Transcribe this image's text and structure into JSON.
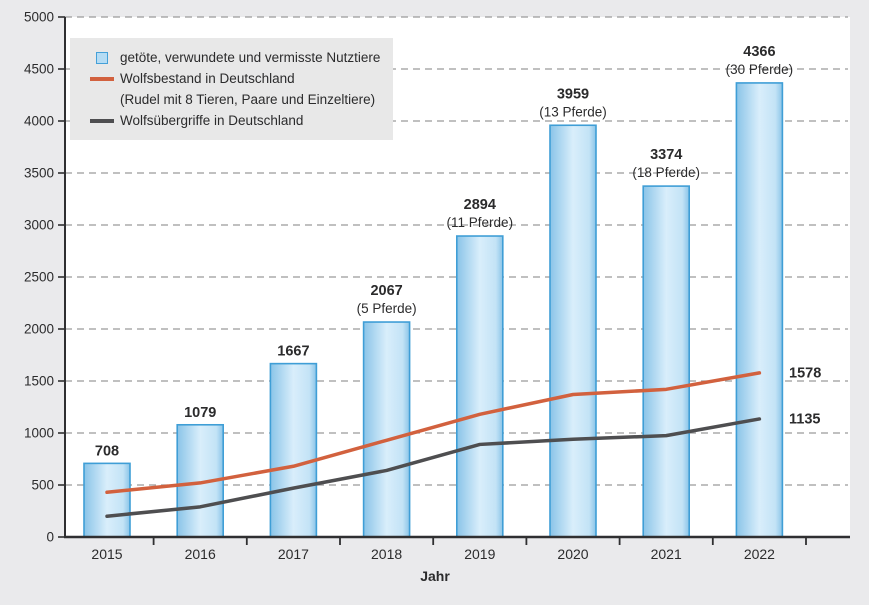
{
  "legend": {
    "items": [
      {
        "id": "nutztiere",
        "marker": "bar-swatch-icon",
        "label": "getöte, verwundete und vermisste Nutztiere"
      },
      {
        "id": "wolfsbestand",
        "marker": "orange-line-icon",
        "label": "Wolfsbestand in Deutschland",
        "sublabel": "(Rudel mit 8 Tieren, Paare und Einzeltiere)"
      },
      {
        "id": "wolfsuebergriffe",
        "marker": "gray-line-icon",
        "label": "Wolfsübergriffe in Deutschland"
      }
    ]
  },
  "chart_data": {
    "type": "bar",
    "categories": [
      "2015",
      "2016",
      "2017",
      "2018",
      "2019",
      "2020",
      "2021",
      "2022"
    ],
    "xlabel": "Jahr",
    "ylim": [
      0,
      5000
    ],
    "ytick_step": 500,
    "yticks": [
      0,
      500,
      1000,
      1500,
      2000,
      2500,
      3000,
      3500,
      4000,
      4500,
      5000
    ],
    "grid": "horizontal-dashed",
    "legend_position": "top-left",
    "series": [
      {
        "name": "getöte, verwundete und vermisste Nutztiere",
        "type": "bar",
        "values": [
          708,
          1079,
          1667,
          2067,
          2894,
          3959,
          3374,
          4366
        ],
        "labels": [
          "708",
          "1079",
          "1667",
          "2067",
          "2894",
          "3959",
          "3374",
          "4366"
        ],
        "annotations": [
          "",
          "",
          "",
          "(5 Pferde)",
          "(11 Pferde)",
          "(13 Pferde)",
          "(18 Pferde)",
          "(30 Pferde)"
        ]
      },
      {
        "name": "Wolfsbestand in Deutschland (Rudel mit 8 Tieren, Paare und Einzeltiere)",
        "type": "line",
        "values": [
          430,
          520,
          680,
          930,
          1180,
          1370,
          1420,
          1578
        ],
        "end_label": "1578"
      },
      {
        "name": "Wolfsübergriffe in Deutschland",
        "type": "line",
        "values": [
          200,
          290,
          470,
          640,
          890,
          940,
          975,
          1135
        ],
        "end_label": "1135"
      }
    ]
  },
  "colors": {
    "background": "#eaeaec",
    "plot_background": "#ffffff",
    "legend_background": "#e8e8e8",
    "bar_fill_edge": "#8ac4e8",
    "bar_fill_center": "#d9eefb",
    "bar_border": "#3f9ed6",
    "wolfsbestand_line": "#d2613e",
    "wolfsuebergriffe_line": "#4e4e50",
    "grid": "#9a9a9a",
    "axis": "#2f2f31",
    "text": "#2b2b2c"
  }
}
